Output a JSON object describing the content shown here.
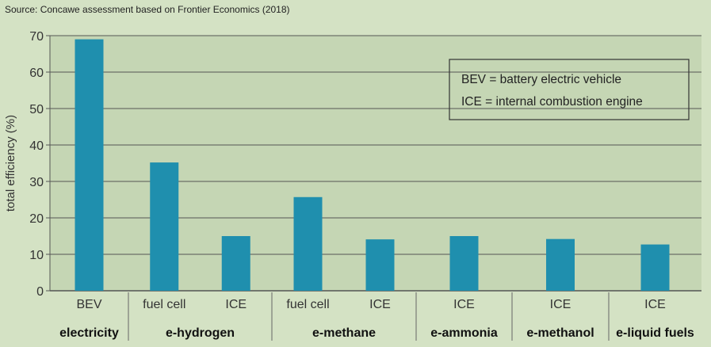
{
  "source_note": "Source: Concawe assessment based on Frontier Economics (2018)",
  "legend_lines": [
    "BEV = battery electric vehicle",
    "ICE = internal combustion engine"
  ],
  "colors": {
    "bar": "#1f8fae",
    "background": "#d4e2c4",
    "plot_area": "#c5d6b4",
    "grid": "#555555"
  },
  "chart_data": {
    "type": "bar",
    "ylabel": "total efficiency (%)",
    "ylim": [
      0,
      70
    ],
    "yticks": [
      0,
      10,
      20,
      30,
      40,
      50,
      60,
      70
    ],
    "grid": true,
    "legend_position": "top-right",
    "categories": [
      "BEV",
      "fuel cell",
      "ICE",
      "fuel cell",
      "ICE",
      "ICE",
      "ICE",
      "ICE"
    ],
    "values": [
      69,
      35.2,
      15,
      25.7,
      14.1,
      15,
      14.2,
      12.7
    ],
    "groups": [
      {
        "name": "electricity",
        "categories": [
          "BEV"
        ]
      },
      {
        "name": "e-hydrogen",
        "categories": [
          "fuel cell",
          "ICE"
        ]
      },
      {
        "name": "e-methane",
        "categories": [
          "fuel cell",
          "ICE"
        ]
      },
      {
        "name": "e-ammonia",
        "categories": [
          "ICE"
        ]
      },
      {
        "name": "e-methanol",
        "categories": [
          "ICE"
        ]
      },
      {
        "name": "e-liquid fuels",
        "categories": [
          "ICE"
        ]
      }
    ]
  }
}
